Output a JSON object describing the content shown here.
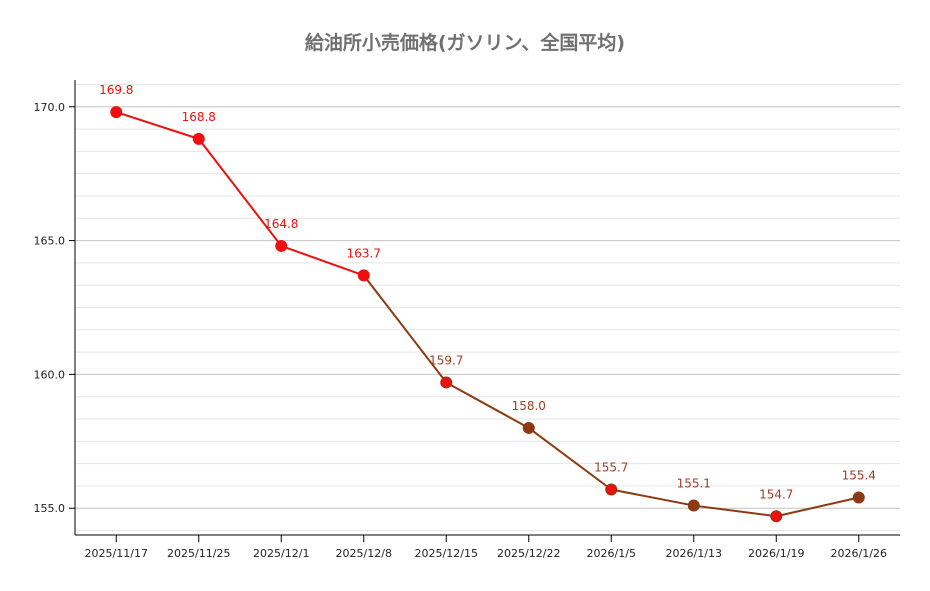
{
  "chart_data": {
    "type": "line",
    "title": "給油所小売価格(ガソリン、全国平均)",
    "xlabel": "",
    "ylabel": "",
    "categories": [
      "2025/11/17",
      "2025/11/25",
      "2025/12/1",
      "2025/12/8",
      "2025/12/15",
      "2025/12/22",
      "2026/1/5",
      "2026/1/13",
      "2026/1/19",
      "2026/1/26"
    ],
    "values": [
      169.8,
      168.8,
      164.8,
      163.7,
      159.7,
      158.0,
      155.7,
      155.1,
      154.7,
      155.4
    ],
    "data_labels": [
      "169.8",
      "168.8",
      "164.8",
      "163.7",
      "159.7",
      "158.0",
      "155.7",
      "155.1",
      "154.7",
      "155.4"
    ],
    "ylim": [
      154,
      171
    ],
    "yticks": [
      "155.0",
      "160.0",
      "165.0",
      "170.0"
    ],
    "ytick_values": [
      155,
      160,
      165,
      170
    ],
    "grid": true,
    "legend": "none",
    "colors": {
      "early": "#ee0f0f",
      "late": "#8b3a12",
      "label_late": "#a0402a",
      "title": "#707070"
    }
  }
}
